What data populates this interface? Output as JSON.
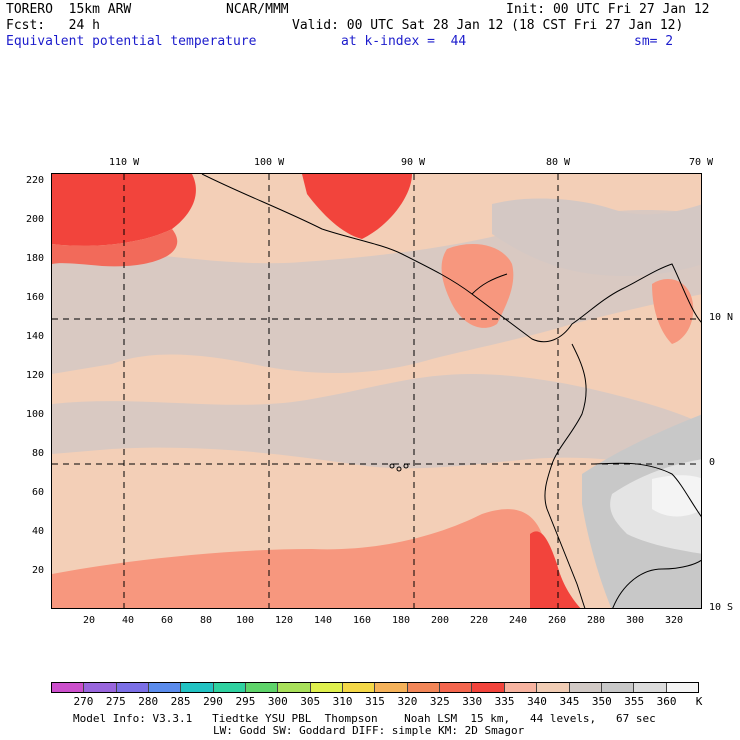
{
  "header": {
    "line1_left": "TORERO  15km ARW",
    "line1_mid": "NCAR/MMM",
    "line1_right": "Init: 00 UTC Fri 27 Jan 12",
    "line2_left": "Fcst:   24 h",
    "line2_right": "Valid: 00 UTC Sat 28 Jan 12 (18 CST Fri 27 Jan 12)",
    "line3_left": "Equivalent potential temperature",
    "line3_mid": "at k-index =  44",
    "line3_right": "sm= 2"
  },
  "map": {
    "top_lon_labels": [
      "110 W",
      "100 W",
      "90 W",
      "80 W",
      "70 W"
    ],
    "right_lat_labels": [
      "10 N",
      "0",
      "10 S"
    ],
    "left_ticks": [
      "220",
      "200",
      "180",
      "160",
      "140",
      "120",
      "100",
      "80",
      "60",
      "40",
      "20"
    ],
    "bottom_ticks": [
      "20",
      "40",
      "60",
      "80",
      "100",
      "120",
      "140",
      "160",
      "180",
      "200",
      "220",
      "240",
      "260",
      "280",
      "300",
      "320"
    ],
    "colors": {
      "c335": "#f2443c",
      "c330": "#f26a5a",
      "c325": "#f7977e",
      "c340": "#f3cfb7",
      "c345": "#d9c9c2",
      "c350": "#c8c8c8",
      "c355": "#dcdcdc",
      "c360": "#f2f2f2"
    }
  },
  "colorbar": {
    "labels": [
      "270",
      "275",
      "280",
      "285",
      "290",
      "295",
      "300",
      "305",
      "310",
      "315",
      "320",
      "325",
      "330",
      "335",
      "340",
      "345",
      "350",
      "355",
      "360",
      "K"
    ],
    "colors": [
      "#cc4fcc",
      "#9966dd",
      "#7b6fe6",
      "#5a8bec",
      "#22c3c3",
      "#2fd1a0",
      "#5ed36a",
      "#a8e05a",
      "#dff04e",
      "#f4d848",
      "#f5b25a",
      "#f28658",
      "#f4664e",
      "#f2443c",
      "#f7b3a0",
      "#f1cdb5",
      "#d2cac6",
      "#c8c8c8",
      "#dcdcdc",
      "#f4f4f4"
    ]
  },
  "footer": {
    "line1": "Model Info: V3.3.1   Tiedtke YSU PBL  Thompson    Noah LSM  15 km,   44 levels,   67 sec",
    "line2": "LW: Godd SW: Goddard DIFF: simple KM: 2D Smagor"
  }
}
